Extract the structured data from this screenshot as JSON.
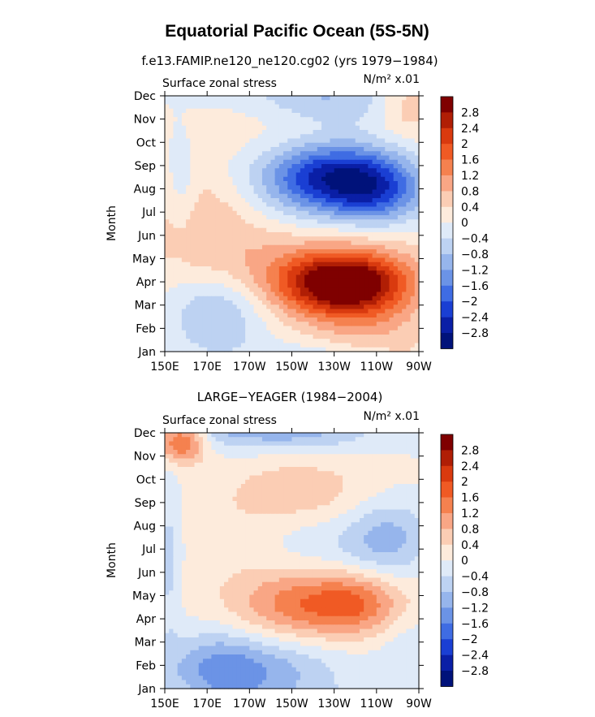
{
  "figure": {
    "title": "Equatorial Pacific Ocean (5S-5N)"
  },
  "colorbar": {
    "levels": [
      "2.8",
      "2.4",
      "2",
      "1.6",
      "1.2",
      "0.8",
      "0.4",
      "0",
      "−0.4",
      "−0.8",
      "−1.2",
      "−1.6",
      "−2",
      "−2.4",
      "−2.8"
    ],
    "colors": [
      "#7f0000",
      "#b01e05",
      "#d93a0f",
      "#f05a24",
      "#f5814f",
      "#f9a685",
      "#fbcdb4",
      "#fdebdc",
      "#dfeaf8",
      "#bdd2f2",
      "#96b5ec",
      "#6b93e6",
      "#3f6ce3",
      "#1a3fd3",
      "#0a1fa6",
      "#00127a"
    ]
  },
  "chart_data": [
    {
      "type": "heatmap",
      "title": "f.e13.FAMIP.ne120_ne120.cg02 (yrs 1979−1984)",
      "left_label": "Surface zonal stress",
      "units": "N/m² x.01",
      "xlabel": "",
      "ylabel": "Month",
      "x_ticks": [
        "150E",
        "170E",
        "170W",
        "150W",
        "130W",
        "110W",
        "90W"
      ],
      "y_ticks": [
        "Jan",
        "Feb",
        "Mar",
        "Apr",
        "May",
        "Jun",
        "Jul",
        "Aug",
        "Sep",
        "Oct",
        "Nov",
        "Dec"
      ],
      "x_range_lon_E": [
        150,
        270
      ],
      "y_range_month": [
        1,
        12
      ],
      "features": [
        {
          "lon": 235,
          "month": 3.9,
          "amp": 3.0,
          "sx": 20,
          "sy": 0.9
        },
        {
          "lon": 220,
          "month": 4.5,
          "amp": 1.0,
          "sx": 40,
          "sy": 1.4
        },
        {
          "lon": 230,
          "month": 8.5,
          "amp": -2.2,
          "sx": 22,
          "sy": 1.0
        },
        {
          "lon": 250,
          "month": 7.8,
          "amp": -1.4,
          "sx": 16,
          "sy": 1.0
        },
        {
          "lon": 205,
          "month": 8.6,
          "amp": -0.6,
          "sx": 30,
          "sy": 2.0
        },
        {
          "lon": 225,
          "month": 12.0,
          "amp": -0.9,
          "sx": 25,
          "sy": 0.8
        },
        {
          "lon": 175,
          "month": 2.8,
          "amp": -1.0,
          "sx": 16,
          "sy": 1.3
        },
        {
          "lon": 170,
          "month": 7.0,
          "amp": 0.8,
          "sx": 22,
          "sy": 1.8
        },
        {
          "lon": 265,
          "month": 11.5,
          "amp": 0.7,
          "sx": 10,
          "sy": 1.0
        },
        {
          "lon": 158,
          "month": 8.0,
          "amp": -0.5,
          "sx": 5,
          "sy": 1.5
        },
        {
          "lon": 200,
          "month": 10.5,
          "amp": 0.5,
          "sx": 25,
          "sy": 1.3
        },
        {
          "lon": 245,
          "month": 2.0,
          "amp": 0.7,
          "sx": 20,
          "sy": 1.0
        }
      ]
    },
    {
      "type": "heatmap",
      "title": "LARGE−YEAGER (1984−2004)",
      "left_label": "Surface zonal stress",
      "units": "N/m² x.01",
      "xlabel": "",
      "ylabel": "Month",
      "x_ticks": [
        "150E",
        "170E",
        "170W",
        "150W",
        "130W",
        "110W",
        "90W"
      ],
      "y_ticks": [
        "Jan",
        "Feb",
        "Mar",
        "Apr",
        "May",
        "Jun",
        "Jul",
        "Aug",
        "Sep",
        "Oct",
        "Nov",
        "Dec"
      ],
      "x_range_lon_E": [
        150,
        270
      ],
      "y_range_month": [
        1,
        12
      ],
      "features": [
        {
          "lon": 227,
          "month": 4.6,
          "amp": 1.5,
          "sx": 28,
          "sy": 1.0
        },
        {
          "lon": 240,
          "month": 4.7,
          "amp": 0.4,
          "sx": 12,
          "sy": 0.8
        },
        {
          "lon": 190,
          "month": 1.8,
          "amp": -1.2,
          "sx": 28,
          "sy": 1.0
        },
        {
          "lon": 175,
          "month": 2.0,
          "amp": -0.5,
          "sx": 14,
          "sy": 1.5
        },
        {
          "lon": 158,
          "month": 11.6,
          "amp": 1.8,
          "sx": 8,
          "sy": 0.6
        },
        {
          "lon": 210,
          "month": 12.0,
          "amp": -0.9,
          "sx": 28,
          "sy": 0.6
        },
        {
          "lon": 255,
          "month": 7.5,
          "amp": -1.0,
          "sx": 14,
          "sy": 1.2
        },
        {
          "lon": 220,
          "month": 7.4,
          "amp": -0.6,
          "sx": 20,
          "sy": 1.0
        },
        {
          "lon": 215,
          "month": 9.3,
          "amp": 0.6,
          "sx": 28,
          "sy": 1.3
        },
        {
          "lon": 152,
          "month": 6.5,
          "amp": -0.6,
          "sx": 4,
          "sy": 2.5
        },
        {
          "lon": 200,
          "month": 6.0,
          "amp": 0.3,
          "sx": 30,
          "sy": 2.5
        },
        {
          "lon": 265,
          "month": 3.0,
          "amp": -0.4,
          "sx": 10,
          "sy": 1.5
        }
      ]
    }
  ]
}
